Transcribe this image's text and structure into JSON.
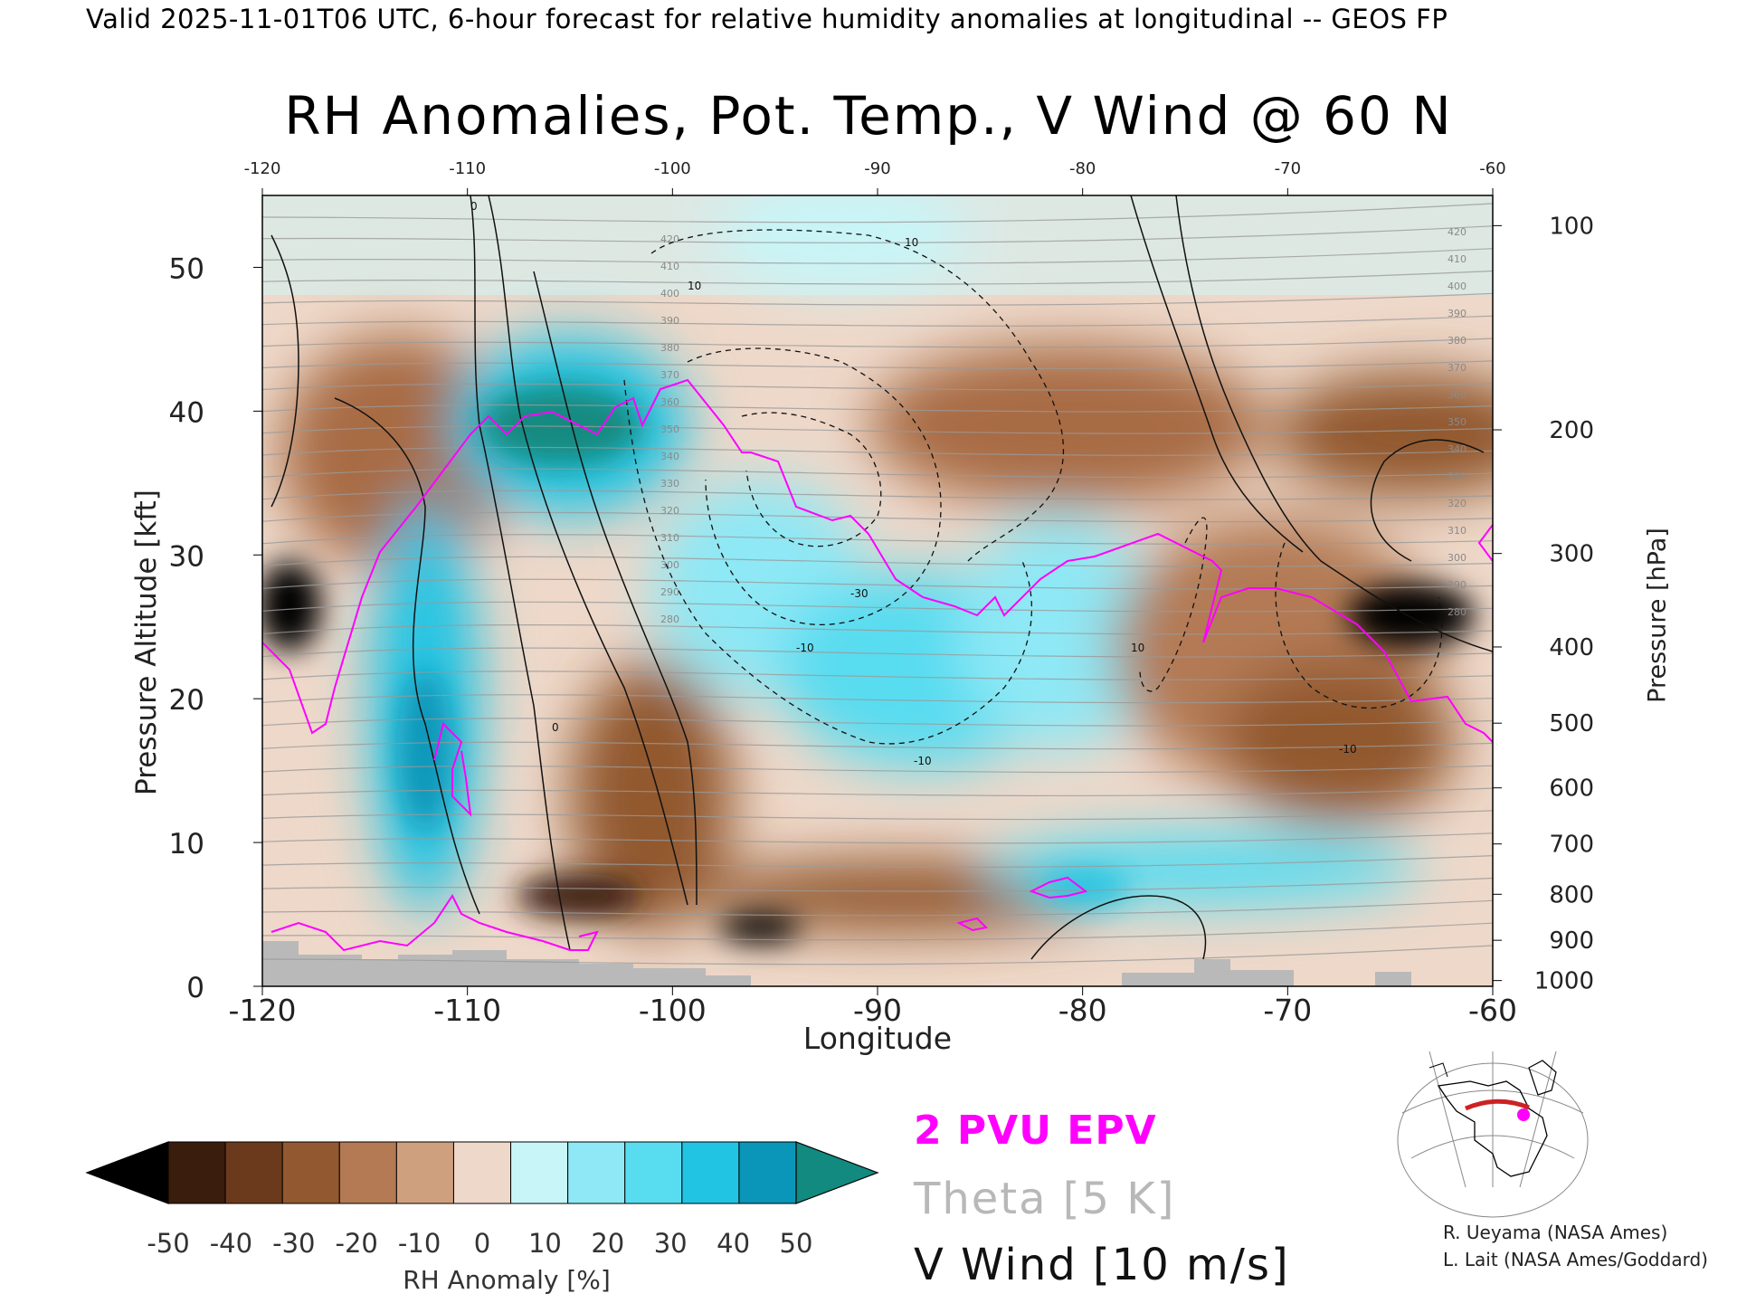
{
  "header": "Valid 2025-11-01T06 UTC, 6-hour forecast for relative humidity anomalies at longitudinal -- GEOS FP",
  "chart_data": {
    "type": "heatmap",
    "title": "RH Anomalies, Pot. Temp., V Wind @ 60 N",
    "xlabel": "Longitude",
    "ylabel": "Pressure Altitude [kft]",
    "ylabel_right": "Pressure [hPa]",
    "xlim": [
      -120,
      -60
    ],
    "ylim": [
      0,
      55
    ],
    "x_ticks": [
      "-120",
      "-110",
      "-100",
      "-90",
      "-80",
      "-70",
      "-60"
    ],
    "top_ticks": [
      "-120",
      "-110",
      "-100",
      "-90",
      "-80",
      "-70",
      "-60"
    ],
    "y_ticks": [
      "0",
      "10",
      "20",
      "30",
      "40",
      "50"
    ],
    "right_ticks": [
      {
        "label": "100",
        "kft": 52.9
      },
      {
        "label": "200",
        "kft": 38.7
      },
      {
        "label": "300",
        "kft": 30.1
      },
      {
        "label": "400",
        "kft": 23.6
      },
      {
        "label": "500",
        "kft": 18.3
      },
      {
        "label": "600",
        "kft": 13.8
      },
      {
        "label": "700",
        "kft": 9.9
      },
      {
        "label": "800",
        "kft": 6.4
      },
      {
        "label": "900",
        "kft": 3.2
      },
      {
        "label": "1000",
        "kft": 0.4
      }
    ],
    "colorbar": {
      "label": "RH Anomaly [%]",
      "ticks": [
        "-50",
        "-40",
        "-30",
        "-20",
        "-10",
        "0",
        "10",
        "20",
        "30",
        "40",
        "50"
      ],
      "colors": [
        "#000000",
        "#3a1d0c",
        "#6b3a1c",
        "#92582f",
        "#b37a54",
        "#cfa07e",
        "#eed8c9",
        "#c8f5f8",
        "#8ee8f5",
        "#58dcf0",
        "#21c4e3",
        "#0a96b8",
        "#128a80"
      ]
    },
    "theta_labels": [
      "420",
      "410",
      "400",
      "390",
      "380",
      "370",
      "360",
      "350",
      "340",
      "330",
      "320",
      "310",
      "300",
      "290",
      "280"
    ],
    "vwind_labels": [
      "10",
      "0",
      "-10",
      "-30"
    ],
    "anomaly_regions": [
      {
        "lon": -118.5,
        "kft": 27,
        "rh": -50
      },
      {
        "lon": -112,
        "kft": 20,
        "rh": 40
      },
      {
        "lon": -105,
        "kft": 38,
        "rh": 50
      },
      {
        "lon": -104,
        "kft": 14,
        "rh": -30
      },
      {
        "lon": -95.5,
        "kft": 4,
        "rh": -50
      },
      {
        "lon": -92,
        "kft": 24,
        "rh": 30
      },
      {
        "lon": -85,
        "kft": 40,
        "rh": -30
      },
      {
        "lon": -77,
        "kft": 8,
        "rh": 20
      },
      {
        "lon": -70,
        "kft": 18,
        "rh": -30
      },
      {
        "lon": -63,
        "kft": 27,
        "rh": -50
      }
    ]
  },
  "legend": {
    "epv": "2 PVU EPV",
    "theta": "Theta [5 K]",
    "vwind": "V Wind [10 m/s]",
    "colors": {
      "epv": "#ff00ff",
      "theta": "#b8b8b8",
      "vwind": "#111111"
    }
  },
  "credits": [
    "R. Ueyama (NASA Ames)",
    "L. Lait (NASA Ames/Goddard)"
  ]
}
